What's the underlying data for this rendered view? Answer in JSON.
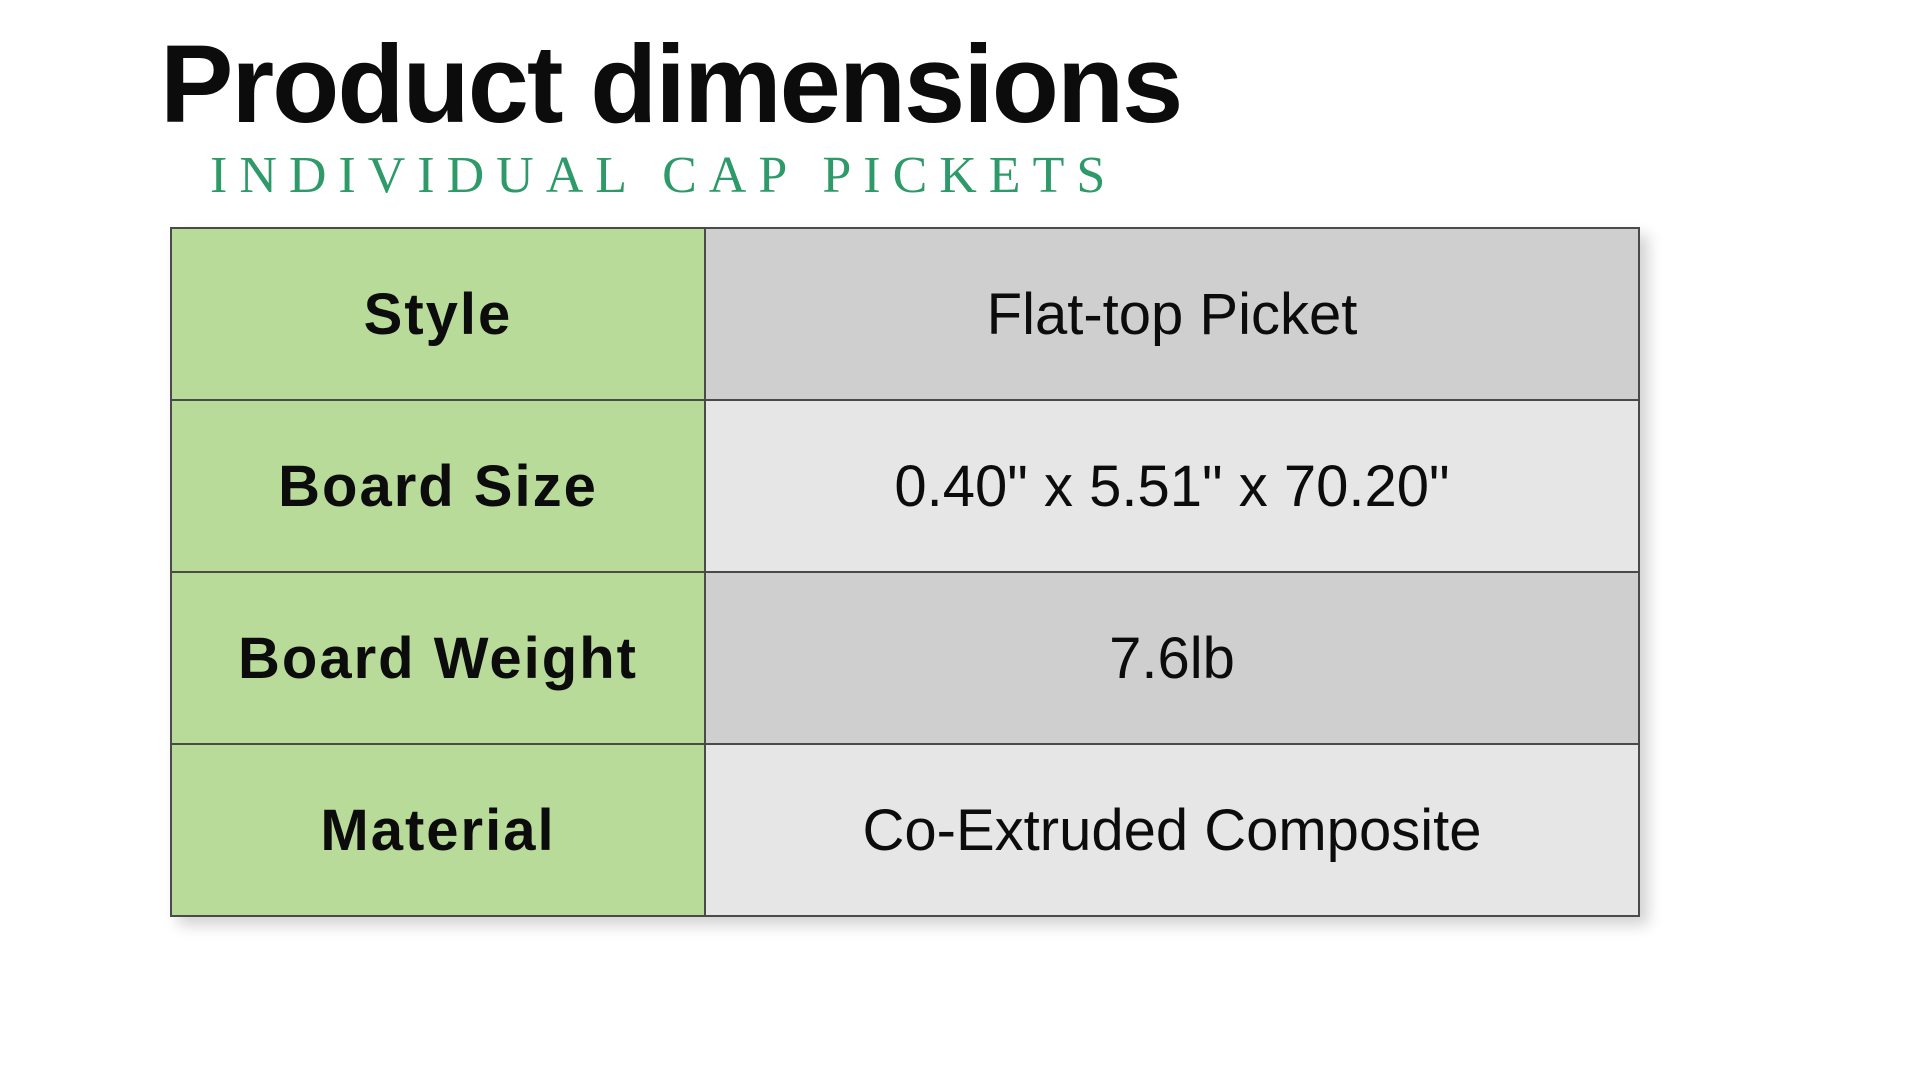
{
  "header": {
    "title": "Product dimensions",
    "subtitle": "INDIVIDUAL CAP PICKETS",
    "title_color": "#0c0c0c",
    "subtitle_color": "#2e9a6a"
  },
  "table": {
    "label_bg": "#b9db9a",
    "value_bg_a": "#cfcfcf",
    "value_bg_b": "#e6e6e6",
    "border_color": "#4a4a4a",
    "rows": [
      {
        "label": "Style",
        "value": "Flat-top Picket"
      },
      {
        "label": "Board Size",
        "value": "0.40\" x 5.51\" x 70.20\""
      },
      {
        "label": "Board Weight",
        "value": "7.6lb"
      },
      {
        "label": "Material",
        "value": "Co-Extruded Composite"
      }
    ]
  }
}
